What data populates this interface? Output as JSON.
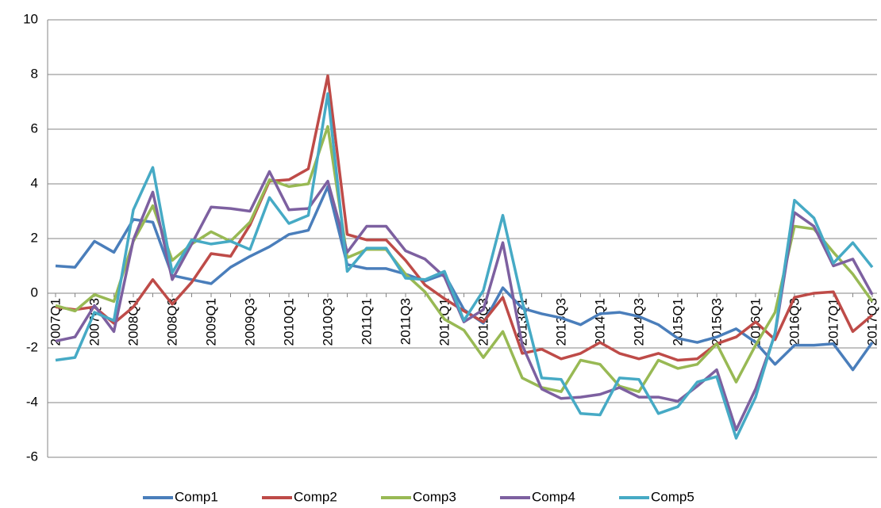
{
  "chart_data": {
    "type": "line",
    "categories": [
      "2007Q1",
      null,
      "2007Q3",
      null,
      "2008Q1",
      null,
      "2008Q3",
      null,
      "2009Q1",
      null,
      "2009Q3",
      null,
      "2010Q1",
      null,
      "2010Q3",
      null,
      "2011Q1",
      null,
      "2011Q3",
      null,
      "2012Q1",
      null,
      "2012Q3",
      null,
      "2013Q1",
      null,
      "2013Q3",
      null,
      "2014Q1",
      null,
      "2014Q3",
      null,
      "2015Q1",
      null,
      "2015Q3",
      null,
      "2016Q1",
      null,
      "2016Q3",
      null,
      "2017Q1",
      null,
      "2017Q3"
    ],
    "series": [
      {
        "name": "Comp1",
        "color": "#4a7ebb",
        "values": [
          1.0,
          0.95,
          1.9,
          1.5,
          2.7,
          2.6,
          0.65,
          0.5,
          0.35,
          0.95,
          1.35,
          1.7,
          2.15,
          2.3,
          3.9,
          1.05,
          0.9,
          0.9,
          0.7,
          0.45,
          0.7,
          -0.6,
          -1.1,
          0.2,
          -0.55,
          -0.75,
          -0.9,
          -1.15,
          -0.75,
          -0.7,
          -0.85,
          -1.15,
          -1.65,
          -1.8,
          -1.6,
          -1.3,
          -1.8,
          -2.6,
          -1.9,
          -1.9,
          -1.85,
          -2.8,
          -1.8
        ]
      },
      {
        "name": "Comp2",
        "color": "#be4b48",
        "values": [
          -0.5,
          -0.6,
          -0.5,
          -1.1,
          -0.5,
          0.5,
          -0.4,
          0.4,
          1.45,
          1.35,
          2.5,
          4.1,
          4.15,
          4.55,
          7.95,
          2.15,
          1.95,
          1.95,
          1.2,
          0.3,
          -0.2,
          -0.65,
          -1.05,
          -0.15,
          -2.2,
          -2.05,
          -2.4,
          -2.2,
          -1.8,
          -2.2,
          -2.4,
          -2.2,
          -2.45,
          -2.4,
          -1.85,
          -1.6,
          -1.05,
          -1.7,
          -0.15,
          0,
          0.05,
          -1.4,
          -0.8
        ]
      },
      {
        "name": "Comp3",
        "color": "#98b954",
        "values": [
          -0.45,
          -0.65,
          -0.05,
          -0.3,
          1.9,
          3.2,
          1.2,
          1.8,
          2.25,
          1.9,
          2.6,
          4.15,
          3.9,
          4.0,
          6.1,
          1.3,
          1.6,
          1.6,
          0.7,
          0.05,
          -0.95,
          -1.35,
          -2.35,
          -1.4,
          -3.1,
          -3.45,
          -3.6,
          -2.45,
          -2.6,
          -3.4,
          -3.6,
          -2.45,
          -2.75,
          -2.6,
          -1.85,
          -3.25,
          -1.9,
          -0.7,
          2.45,
          2.35,
          1.5,
          0.7,
          -0.3
        ]
      },
      {
        "name": "Comp4",
        "color": "#7d60a0",
        "values": [
          -1.75,
          -1.6,
          -0.45,
          -1.4,
          1.95,
          3.7,
          0.5,
          1.8,
          3.15,
          3.1,
          3.0,
          4.45,
          3.05,
          3.1,
          4.1,
          1.5,
          2.45,
          2.45,
          1.55,
          1.25,
          0.6,
          -1.05,
          -0.6,
          1.85,
          -1.9,
          -3.5,
          -3.85,
          -3.8,
          -3.7,
          -3.45,
          -3.8,
          -3.8,
          -3.95,
          -3.4,
          -2.8,
          -5.0,
          -3.5,
          -1.5,
          2.95,
          2.45,
          1.0,
          1.25,
          -0.05
        ]
      },
      {
        "name": "Comp5",
        "color": "#46aac5",
        "values": [
          -2.45,
          -2.35,
          -0.7,
          -1.0,
          3.05,
          4.6,
          0.75,
          1.95,
          1.8,
          1.9,
          1.6,
          3.5,
          2.55,
          2.85,
          7.3,
          0.8,
          1.65,
          1.65,
          0.55,
          0.5,
          0.8,
          -1.0,
          0.1,
          2.85,
          -0.3,
          -3.1,
          -3.15,
          -4.4,
          -4.45,
          -3.1,
          -3.15,
          -4.4,
          -4.15,
          -3.25,
          -3.05,
          -5.3,
          -3.8,
          -1.45,
          3.4,
          2.75,
          1.1,
          1.85,
          0.95
        ]
      }
    ],
    "ylim": [
      -6,
      10
    ],
    "yticks": [
      -6,
      -4,
      -2,
      0,
      2,
      4,
      6,
      8,
      10
    ],
    "grid": true,
    "legend": "bottom"
  }
}
